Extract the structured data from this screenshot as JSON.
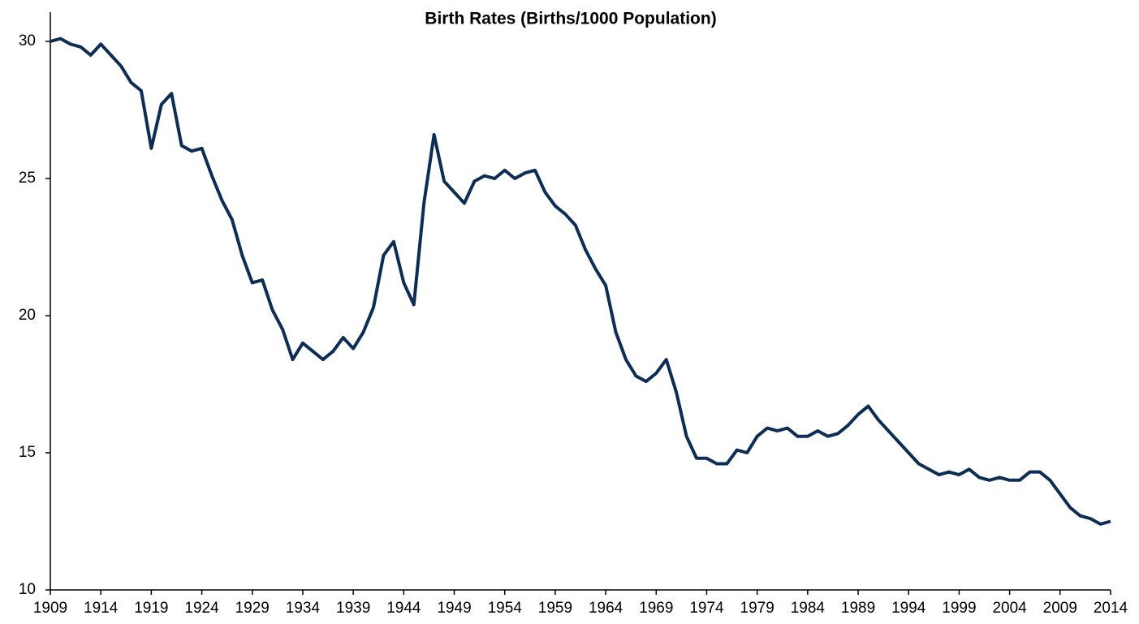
{
  "chart_data": {
    "type": "line",
    "title": "Birth Rates (Births/1000 Population)",
    "x": [
      1909,
      1910,
      1911,
      1912,
      1913,
      1914,
      1915,
      1916,
      1917,
      1918,
      1919,
      1920,
      1921,
      1922,
      1923,
      1924,
      1925,
      1926,
      1927,
      1928,
      1929,
      1930,
      1931,
      1932,
      1933,
      1934,
      1935,
      1936,
      1937,
      1938,
      1939,
      1940,
      1941,
      1942,
      1943,
      1944,
      1945,
      1946,
      1947,
      1948,
      1949,
      1950,
      1951,
      1952,
      1953,
      1954,
      1955,
      1956,
      1957,
      1958,
      1959,
      1960,
      1961,
      1962,
      1963,
      1964,
      1965,
      1966,
      1967,
      1968,
      1969,
      1970,
      1971,
      1972,
      1973,
      1974,
      1975,
      1976,
      1977,
      1978,
      1979,
      1980,
      1981,
      1982,
      1983,
      1984,
      1985,
      1986,
      1987,
      1988,
      1989,
      1990,
      1991,
      1992,
      1993,
      1994,
      1995,
      1996,
      1997,
      1998,
      1999,
      2000,
      2001,
      2002,
      2003,
      2004,
      2005,
      2006,
      2007,
      2008,
      2009,
      2010,
      2011,
      2012,
      2013,
      2014
    ],
    "values": [
      30.0,
      30.1,
      29.9,
      29.8,
      29.5,
      29.9,
      29.5,
      29.1,
      28.5,
      28.2,
      26.1,
      27.7,
      28.1,
      26.2,
      26.0,
      26.1,
      25.1,
      24.2,
      23.5,
      22.2,
      21.2,
      21.3,
      20.2,
      19.5,
      18.4,
      19.0,
      18.7,
      18.4,
      18.7,
      19.2,
      18.8,
      19.4,
      20.3,
      22.2,
      22.7,
      21.2,
      20.4,
      24.1,
      26.6,
      24.9,
      24.5,
      24.1,
      24.9,
      25.1,
      25.0,
      25.3,
      25.0,
      25.2,
      25.3,
      24.5,
      24.0,
      23.7,
      23.3,
      22.4,
      21.7,
      21.1,
      19.4,
      18.4,
      17.8,
      17.6,
      17.9,
      18.4,
      17.2,
      15.6,
      14.8,
      14.8,
      14.6,
      14.6,
      15.1,
      15.0,
      15.6,
      15.9,
      15.8,
      15.9,
      15.6,
      15.6,
      15.8,
      15.6,
      15.7,
      16.0,
      16.4,
      16.7,
      16.2,
      15.8,
      15.4,
      15.0,
      14.6,
      14.4,
      14.2,
      14.3,
      14.2,
      14.4,
      14.1,
      14.0,
      14.1,
      14.0,
      14.0,
      14.3,
      14.3,
      14.0,
      13.5,
      13.0,
      12.7,
      12.6,
      12.4,
      12.5
    ],
    "color": "#0d2d54",
    "xlim": [
      1909,
      2014
    ],
    "xticks": [
      1909,
      1914,
      1919,
      1924,
      1929,
      1934,
      1939,
      1944,
      1949,
      1954,
      1959,
      1964,
      1969,
      1974,
      1979,
      1984,
      1989,
      1994,
      1999,
      2004,
      2009,
      2014
    ],
    "ylim": [
      10,
      30
    ],
    "yticks": [
      10,
      15,
      20,
      25,
      30
    ],
    "grid": false
  }
}
